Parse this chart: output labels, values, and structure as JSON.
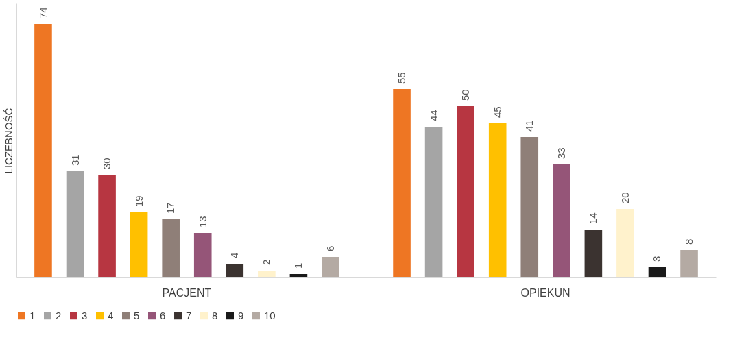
{
  "chart_data": {
    "type": "bar",
    "ylabel": "LICZEBNOŚĆ",
    "categories": [
      "PACJENT",
      "OPIEKUN"
    ],
    "series": [
      {
        "name": "1",
        "color": "#ee7623",
        "values": [
          74,
          55
        ]
      },
      {
        "name": "2",
        "color": "#a5a5a5",
        "values": [
          31,
          44
        ]
      },
      {
        "name": "3",
        "color": "#b73641",
        "values": [
          30,
          50
        ]
      },
      {
        "name": "4",
        "color": "#ffc000",
        "values": [
          19,
          45
        ]
      },
      {
        "name": "5",
        "color": "#8f7f78",
        "values": [
          17,
          41
        ]
      },
      {
        "name": "6",
        "color": "#955578",
        "values": [
          13,
          33
        ]
      },
      {
        "name": "7",
        "color": "#3b3330",
        "values": [
          4,
          14
        ]
      },
      {
        "name": "8",
        "color": "#fff2cc",
        "values": [
          2,
          20
        ]
      },
      {
        "name": "9",
        "color": "#1a1a1a",
        "values": [
          1,
          3
        ]
      },
      {
        "name": "10",
        "color": "#b4aaa3",
        "values": [
          6,
          8
        ]
      }
    ],
    "data_labels": true,
    "legend": "bottom",
    "grid": false
  }
}
